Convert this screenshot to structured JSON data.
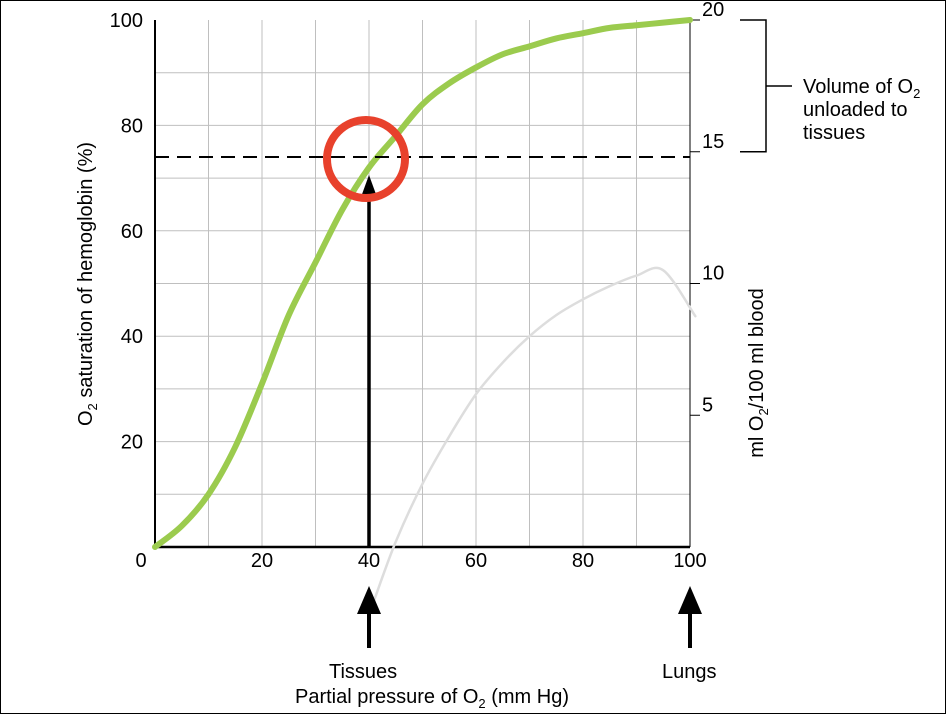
{
  "chart_data": {
    "type": "line",
    "xlabel": {
      "pre": "Partial pressure of O",
      "sub": "2",
      "post": " (mm Hg)"
    },
    "ylabel": {
      "pre": "O",
      "sub": "2",
      "post": " saturation of hemoglobin (%)"
    },
    "y2label": {
      "pre": "ml O",
      "sub": "2",
      "post": "/100 ml blood"
    },
    "xlim": [
      0,
      100
    ],
    "ylim": [
      0,
      100
    ],
    "y2lim": [
      0,
      20
    ],
    "xticks": [
      "0",
      "20",
      "40",
      "60",
      "80",
      "100"
    ],
    "yticks": [
      "20",
      "40",
      "60",
      "80",
      "100"
    ],
    "y2ticks": [
      "5",
      "10",
      "15",
      "20"
    ],
    "grid": true,
    "series": [
      {
        "color": "#9BCB4E",
        "x": [
          0,
          5,
          10,
          15,
          20,
          25,
          30,
          35,
          40,
          45,
          50,
          55,
          60,
          65,
          70,
          75,
          80,
          85,
          90,
          95,
          100
        ],
        "y": [
          0,
          4,
          10,
          19,
          31,
          44,
          54,
          64,
          72,
          78,
          84,
          88,
          91,
          93.5,
          95,
          96.5,
          97.5,
          98.5,
          99,
          99.5,
          100
        ]
      },
      {
        "color": "#DDDDDD",
        "x": [
          41,
          45,
          50,
          55,
          60,
          65,
          70,
          75,
          80,
          85,
          90,
          95,
          101
        ],
        "y": [
          -10,
          1,
          12,
          21,
          29,
          35,
          40,
          44,
          47,
          49.5,
          51.5,
          52.5,
          43.8
        ]
      }
    ],
    "reference_line": {
      "y": 74,
      "style": "dashed"
    },
    "highlight_circle": {
      "x": 40,
      "y": 74,
      "color": "#E8412C"
    },
    "arrows": [
      {
        "x": 40,
        "label": "Tissues"
      },
      {
        "x": 100,
        "label": "Lungs"
      }
    ],
    "bracket": {
      "from_y2": 15,
      "to_y2": 20,
      "label_lines": [
        {
          "pre": "Volume of O",
          "sub": "2"
        },
        {
          "pre": "unloaded to",
          "sub": ""
        },
        {
          "pre": "tissues",
          "sub": ""
        }
      ]
    }
  }
}
